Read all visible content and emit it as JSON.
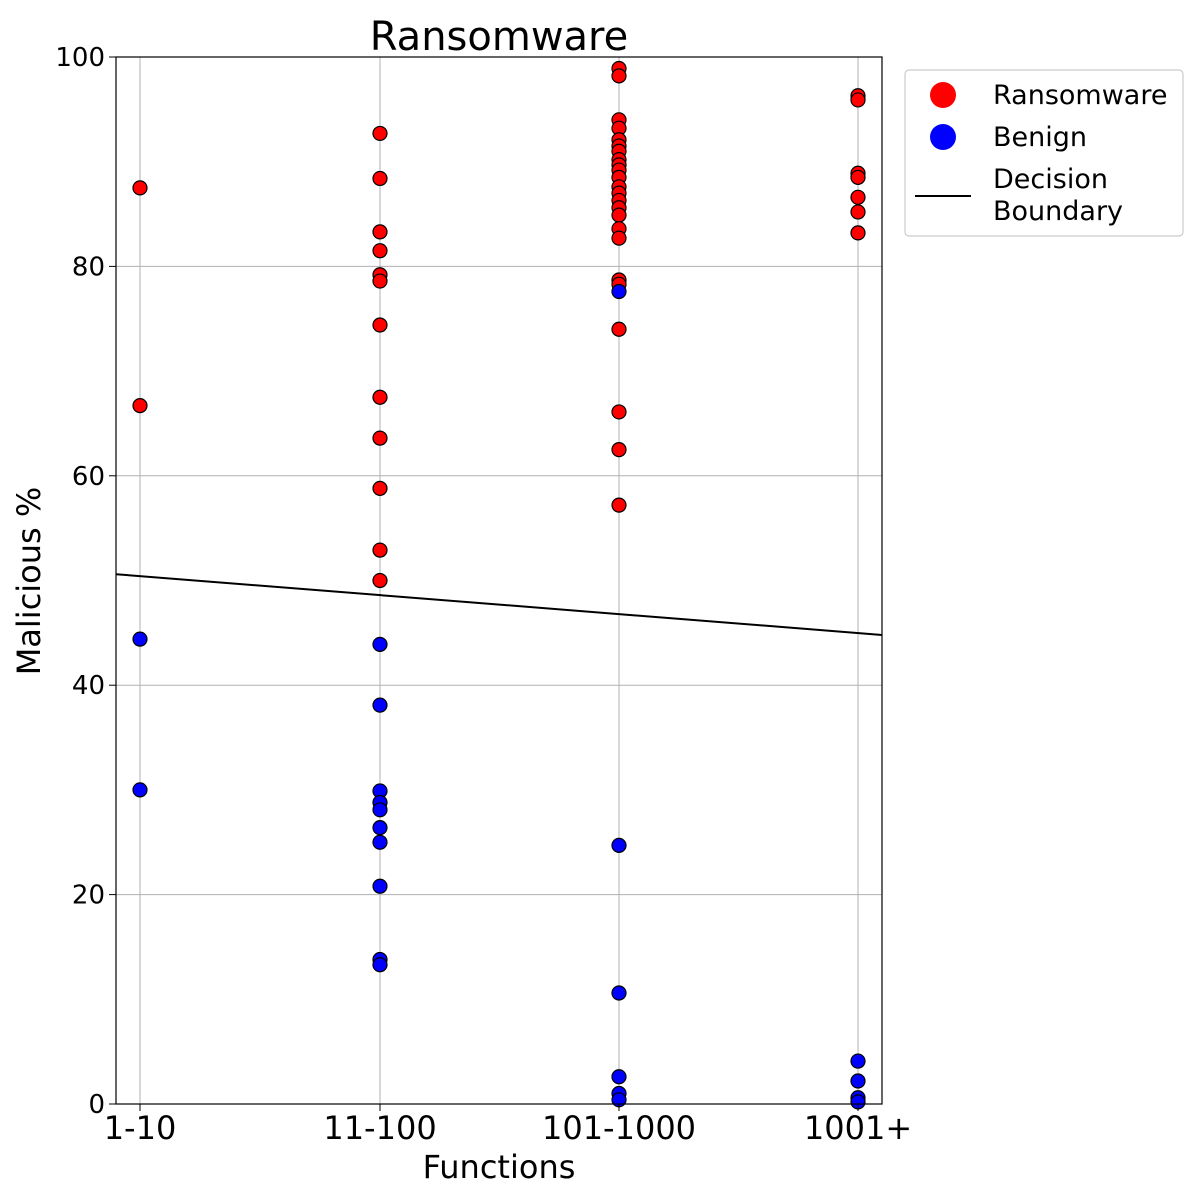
{
  "chart_data": {
    "type": "scatter",
    "title": "Ransomware",
    "xlabel": "Functions",
    "ylabel": "Malicious %",
    "categories": [
      "1-10",
      "11-100",
      "101-1000",
      "1001+"
    ],
    "ylim": [
      0,
      100
    ],
    "yticks": [
      "0",
      "20",
      "40",
      "60",
      "80",
      "100"
    ],
    "grid": true,
    "legend_position": "outside-top-right",
    "series": [
      {
        "name": "Ransomware",
        "color": "#ff0000",
        "points": [
          {
            "x": "1-10",
            "y": 87.5
          },
          {
            "x": "1-10",
            "y": 66.7
          },
          {
            "x": "11-100",
            "y": 92.7
          },
          {
            "x": "11-100",
            "y": 88.4
          },
          {
            "x": "11-100",
            "y": 83.3
          },
          {
            "x": "11-100",
            "y": 81.5
          },
          {
            "x": "11-100",
            "y": 79.2
          },
          {
            "x": "11-100",
            "y": 78.6
          },
          {
            "x": "11-100",
            "y": 74.4
          },
          {
            "x": "11-100",
            "y": 67.5
          },
          {
            "x": "11-100",
            "y": 63.6
          },
          {
            "x": "11-100",
            "y": 58.8
          },
          {
            "x": "11-100",
            "y": 52.9
          },
          {
            "x": "11-100",
            "y": 50.0
          },
          {
            "x": "101-1000",
            "y": 98.9
          },
          {
            "x": "101-1000",
            "y": 98.2
          },
          {
            "x": "101-1000",
            "y": 94.0
          },
          {
            "x": "101-1000",
            "y": 93.2
          },
          {
            "x": "101-1000",
            "y": 92.1
          },
          {
            "x": "101-1000",
            "y": 91.5
          },
          {
            "x": "101-1000",
            "y": 91.0
          },
          {
            "x": "101-1000",
            "y": 90.2
          },
          {
            "x": "101-1000",
            "y": 89.7
          },
          {
            "x": "101-1000",
            "y": 89.2
          },
          {
            "x": "101-1000",
            "y": 88.5
          },
          {
            "x": "101-1000",
            "y": 87.6
          },
          {
            "x": "101-1000",
            "y": 87.0
          },
          {
            "x": "101-1000",
            "y": 86.3
          },
          {
            "x": "101-1000",
            "y": 85.6
          },
          {
            "x": "101-1000",
            "y": 84.9
          },
          {
            "x": "101-1000",
            "y": 83.6
          },
          {
            "x": "101-1000",
            "y": 82.7
          },
          {
            "x": "101-1000",
            "y": 78.7
          },
          {
            "x": "101-1000",
            "y": 78.3
          },
          {
            "x": "101-1000",
            "y": 74.0
          },
          {
            "x": "101-1000",
            "y": 66.1
          },
          {
            "x": "101-1000",
            "y": 62.5
          },
          {
            "x": "101-1000",
            "y": 57.2
          },
          {
            "x": "1001+",
            "y": 96.3
          },
          {
            "x": "1001+",
            "y": 95.9
          },
          {
            "x": "1001+",
            "y": 88.9
          },
          {
            "x": "1001+",
            "y": 88.5
          },
          {
            "x": "1001+",
            "y": 86.6
          },
          {
            "x": "1001+",
            "y": 85.2
          },
          {
            "x": "1001+",
            "y": 83.2
          }
        ]
      },
      {
        "name": "Benign",
        "color": "#0000ff",
        "points": [
          {
            "x": "1-10",
            "y": 44.4
          },
          {
            "x": "1-10",
            "y": 30.0
          },
          {
            "x": "11-100",
            "y": 43.9
          },
          {
            "x": "11-100",
            "y": 38.1
          },
          {
            "x": "11-100",
            "y": 29.9
          },
          {
            "x": "11-100",
            "y": 28.8
          },
          {
            "x": "11-100",
            "y": 28.1
          },
          {
            "x": "11-100",
            "y": 26.4
          },
          {
            "x": "11-100",
            "y": 25.0
          },
          {
            "x": "11-100",
            "y": 20.8
          },
          {
            "x": "11-100",
            "y": 13.8
          },
          {
            "x": "11-100",
            "y": 13.3
          },
          {
            "x": "101-1000",
            "y": 77.6
          },
          {
            "x": "101-1000",
            "y": 24.7
          },
          {
            "x": "101-1000",
            "y": 10.6
          },
          {
            "x": "101-1000",
            "y": 2.6
          },
          {
            "x": "101-1000",
            "y": 1.0
          },
          {
            "x": "101-1000",
            "y": 0.4
          },
          {
            "x": "1001+",
            "y": 4.1
          },
          {
            "x": "1001+",
            "y": 2.2
          },
          {
            "x": "1001+",
            "y": 0.6
          },
          {
            "x": "1001+",
            "y": 0.2
          }
        ]
      }
    ],
    "decision_boundary": {
      "name": "Decision\nBoundary",
      "color": "#000000",
      "y_start": 50.6,
      "y_end": 44.8
    }
  }
}
